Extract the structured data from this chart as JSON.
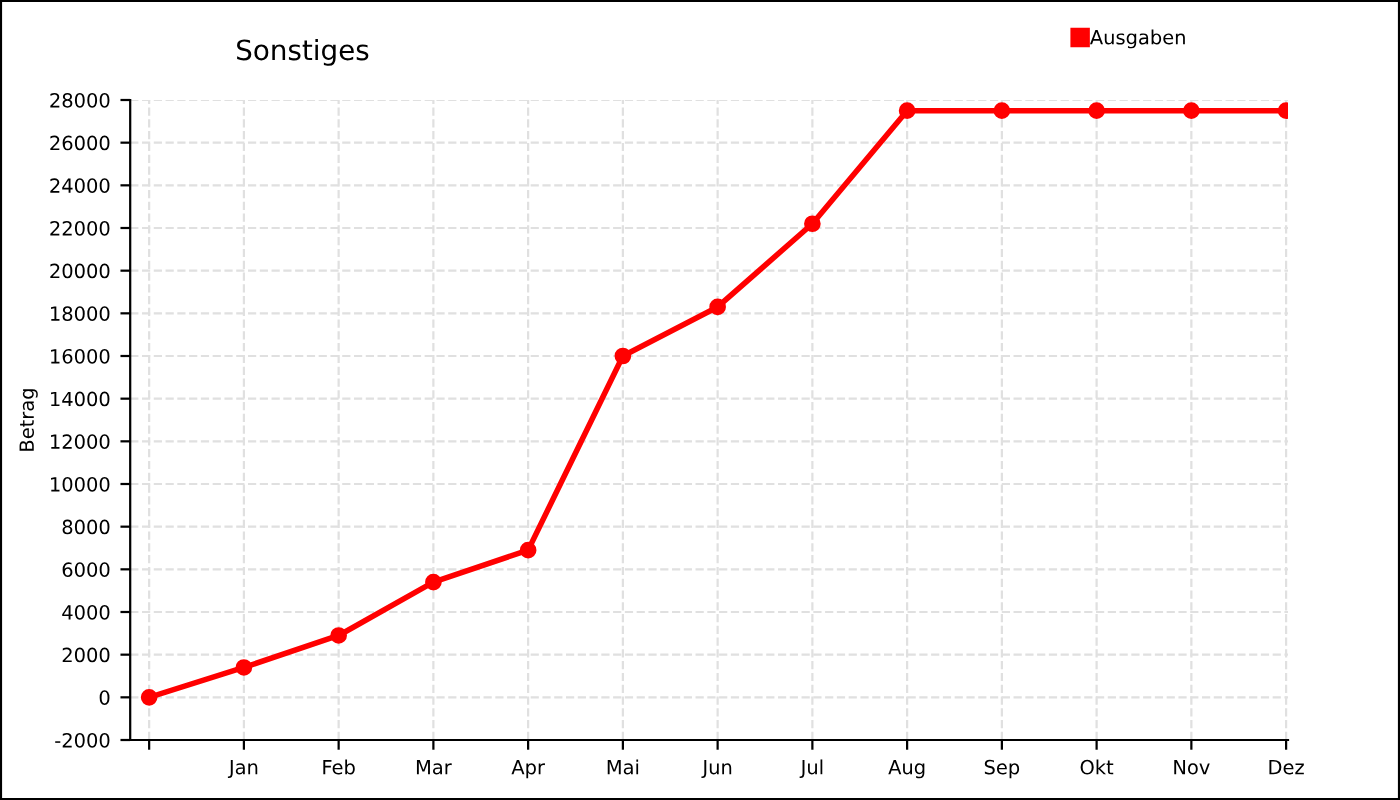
{
  "chart_data": {
    "type": "line",
    "title": "Sonstiges",
    "ylabel": "Betrag",
    "categories": [
      null,
      "Jan",
      "Feb",
      "Mar",
      "Apr",
      "Mai",
      "Jun",
      "Jul",
      "Aug",
      "Sep",
      "Okt",
      "Nov",
      "Dez"
    ],
    "series": [
      {
        "name": "Ausgaben",
        "color": "#ff0000",
        "values": [
          0,
          1400,
          2900,
          5400,
          6900,
          16000,
          18300,
          22200,
          27500,
          27500,
          27500,
          27500,
          27500
        ]
      }
    ],
    "ylim": [
      -2000,
      28000
    ],
    "yticks": [
      -2000,
      0,
      2000,
      4000,
      6000,
      8000,
      10000,
      12000,
      14000,
      16000,
      18000,
      20000,
      22000,
      24000,
      26000,
      28000
    ],
    "grid": true,
    "legend": "top right",
    "marker": "circle",
    "line_style": "solid"
  }
}
